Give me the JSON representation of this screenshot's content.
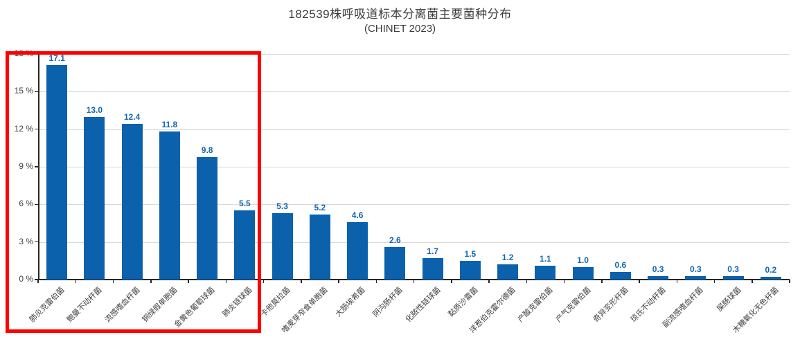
{
  "header": {
    "title": "182539株呼吸道标本分离菌主要菌种分布",
    "subtitle": "(CHINET 2023)"
  },
  "chart_data": {
    "type": "bar",
    "title": "182539株呼吸道标本分离菌主要菌种分布",
    "subtitle": "(CHINET 2023)",
    "categories": [
      "肺炎克雷伯菌",
      "鲍曼不动杆菌",
      "流感嗜血杆菌",
      "铜绿假单胞菌",
      "金黄色葡萄球菌",
      "肺炎链球菌",
      "卡他莫拉菌",
      "嗜麦芽窄食单胞菌",
      "大肠埃希菌",
      "阴沟肠杆菌",
      "化脓性链球菌",
      "黏质沙雷菌",
      "洋葱伯克霍尔德菌",
      "产酸克雷伯菌",
      "产气克雷伯菌",
      "奇异变形杆菌",
      "琼氏不动杆菌",
      "副流感嗜血杆菌",
      "屎肠球菌",
      "木糖氧化无色杆菌"
    ],
    "values": [
      17.1,
      13.0,
      12.4,
      11.8,
      9.8,
      5.5,
      5.3,
      5.2,
      4.6,
      2.6,
      1.7,
      1.5,
      1.2,
      1.1,
      1.0,
      0.6,
      0.3,
      0.3,
      0.3,
      0.2
    ],
    "xlabel": "",
    "ylabel": "",
    "ylim": [
      0,
      18
    ],
    "ytick_step": 3,
    "ytick_labels": [
      "0 %",
      "3 %",
      "6 %",
      "9 %",
      "12 %",
      "15 %",
      "18 %"
    ],
    "grid": true,
    "legend": false,
    "bar_color": "#0b61ac",
    "data_label_color": "#1166b0",
    "annotations": [
      {
        "type": "rect",
        "label": "red highlight box around top 6 species",
        "from_category": "肺炎克雷伯菌",
        "to_category": "肺炎链球菌",
        "color": "#fe0000"
      }
    ]
  }
}
